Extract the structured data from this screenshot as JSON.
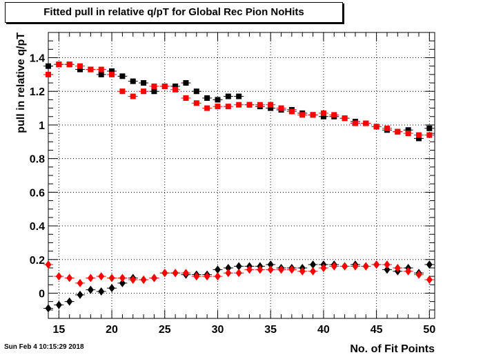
{
  "timestamp": "Sun Feb  4 10:15:29 2018",
  "chart_data": {
    "type": "scatter",
    "title": "Fitted pull in relative q/pT for Global Rec Pion NoHits",
    "xlabel": "No. of Fit Points",
    "ylabel": "pull in relative q/pT",
    "xlim": [
      14,
      50.5
    ],
    "ylim": [
      -0.15,
      1.55
    ],
    "grid": true,
    "xticks": [
      15,
      20,
      25,
      30,
      35,
      40,
      45,
      50
    ],
    "yticks": [
      0,
      0.2,
      0.4,
      0.6,
      0.8,
      1,
      1.2,
      1.4
    ],
    "ytick_labels": [
      "0",
      "0.2",
      "0.4",
      "0.6",
      "0.8",
      "1",
      "1.2",
      "1.4"
    ],
    "x": [
      14,
      15,
      16,
      17,
      18,
      19,
      20,
      21,
      22,
      23,
      24,
      25,
      26,
      27,
      28,
      29,
      30,
      31,
      32,
      33,
      34,
      35,
      36,
      37,
      38,
      39,
      40,
      41,
      42,
      43,
      44,
      45,
      46,
      47,
      48,
      49,
      50
    ],
    "series": [
      {
        "marker": "square",
        "color": "#000000",
        "values": [
          1.35,
          1.36,
          1.36,
          1.33,
          1.33,
          1.3,
          1.32,
          1.29,
          1.26,
          1.25,
          1.2,
          1.23,
          1.23,
          1.25,
          1.2,
          1.16,
          1.15,
          1.17,
          1.17,
          1.12,
          1.11,
          1.1,
          1.09,
          1.09,
          1.07,
          1.06,
          1.05,
          1.05,
          1.04,
          1.02,
          1.01,
          0.99,
          0.97,
          0.96,
          0.97,
          0.92,
          0.98
        ]
      },
      {
        "marker": "square",
        "color": "#ff0000",
        "values": [
          1.3,
          1.36,
          1.36,
          1.35,
          1.33,
          1.33,
          1.3,
          1.2,
          1.17,
          1.2,
          1.23,
          1.23,
          1.21,
          1.16,
          1.13,
          1.1,
          1.11,
          1.11,
          1.12,
          1.12,
          1.12,
          1.12,
          1.1,
          1.08,
          1.06,
          1.06,
          1.07,
          1.06,
          1.04,
          1.01,
          1.01,
          0.99,
          0.98,
          0.96,
          0.95,
          0.94,
          0.94
        ]
      },
      {
        "marker": "diamond",
        "color": "#000000",
        "values": [
          -0.09,
          -0.07,
          -0.05,
          -0.01,
          0.02,
          0.01,
          0.03,
          0.06,
          0.09,
          0.08,
          0.09,
          0.12,
          0.12,
          0.11,
          0.11,
          0.11,
          0.14,
          0.15,
          0.16,
          0.16,
          0.16,
          0.17,
          0.15,
          0.15,
          0.15,
          0.17,
          0.17,
          0.17,
          0.16,
          0.17,
          0.16,
          0.17,
          0.14,
          0.13,
          0.15,
          0.12,
          0.17
        ]
      },
      {
        "marker": "diamond",
        "color": "#ff0000",
        "values": [
          0.17,
          0.1,
          0.09,
          0.06,
          0.09,
          0.1,
          0.09,
          0.09,
          0.08,
          0.08,
          0.09,
          0.12,
          0.12,
          0.12,
          0.1,
          0.1,
          0.1,
          0.12,
          0.12,
          0.14,
          0.14,
          0.14,
          0.14,
          0.14,
          0.13,
          0.13,
          0.15,
          0.16,
          0.16,
          0.16,
          0.16,
          0.17,
          0.17,
          0.15,
          0.13,
          0.11,
          0.08
        ]
      }
    ]
  }
}
